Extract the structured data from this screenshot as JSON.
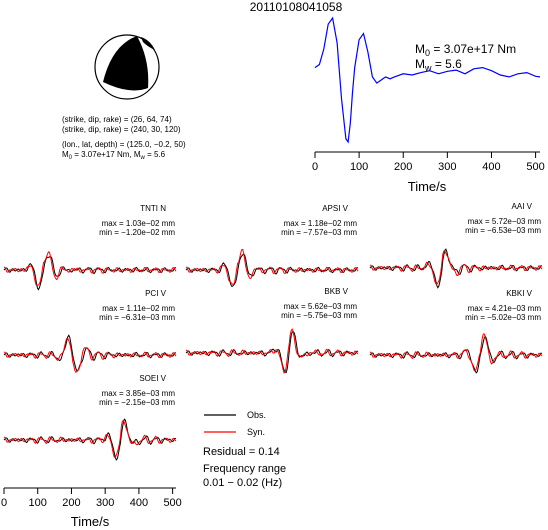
{
  "title": "20110108041058",
  "mechanism": {
    "strike_dip_rake_1": "(strike, dip, rake) = (26, 64, 74)",
    "strike_dip_rake_2": "(strike, dip, rake) = (240, 30, 120)",
    "lon_lat_depth": "(lon., lat, depth) = (125.0, −0.2, 50)",
    "moment_line_a": "M",
    "moment_sub_a": "0",
    "moment_line_b": " = 3.07e+17 Nm, M",
    "moment_sub_b": "w",
    "moment_line_c": " = 5.6"
  },
  "stf_panel": {
    "m0_label": "M",
    "m0_sub": "0",
    "m0_value": " = 3.07e+17 Nm",
    "mw_label": "M",
    "mw_sub": "w",
    "mw_value": " = 5.6",
    "xlabel": "Time/s",
    "xticks": [
      0,
      100,
      200,
      300,
      400,
      500
    ],
    "color": "#0000ff"
  },
  "legend": {
    "obs": "Obs.",
    "syn": "Syn.",
    "obs_color": "#000000",
    "syn_color": "#ff0000",
    "residual": "Residual = 0.14",
    "freq_title": "Frequency range",
    "freq_value": "0.01 − 0.02 (Hz)"
  },
  "bottom_axis": {
    "xlabel": "Time/s",
    "xticks": [
      0,
      100,
      200,
      300,
      400,
      500
    ]
  },
  "stations": [
    {
      "name": "TNTI N",
      "max": "max = 1.03e−02 mm",
      "min": "min = −1.20e−02 mm"
    },
    {
      "name": "APSI V",
      "max": "max = 1.18e−02 mm",
      "min": "min = −7.57e−03 mm"
    },
    {
      "name": "AAI V",
      "max": "max = 5.72e−03 mm",
      "min": "min = −6.53e−03 mm"
    },
    {
      "name": "PCI V",
      "max": "max = 1.11e−02 mm",
      "min": "min = −6.31e−03 mm"
    },
    {
      "name": "BKB V",
      "max": "max = 5.62e−03 mm",
      "min": "min = −5.75e−03 mm"
    },
    {
      "name": "KBKI V",
      "max": "max = 4.21e−03 mm",
      "min": "min = −5.02e−03 mm"
    },
    {
      "name": "SOEI V",
      "max": "max = 3.85e−03 mm",
      "min": "min = −2.15e−03 mm"
    }
  ],
  "chart_data": [
    {
      "type": "line",
      "description_role": "source time function",
      "xlabel": "Time/s",
      "xlim": [
        0,
        510
      ],
      "x": [
        0,
        10,
        20,
        30,
        40,
        50,
        60,
        70,
        75,
        80,
        85,
        90,
        100,
        110,
        120,
        130,
        140,
        150,
        160,
        170,
        180,
        200,
        220,
        240,
        260,
        280,
        300,
        320,
        340,
        360,
        380,
        400,
        420,
        440,
        460,
        480,
        500,
        510
      ],
      "y": [
        0.2,
        0.25,
        0.5,
        0.9,
        1.0,
        0.6,
        -0.3,
        -0.95,
        -1.0,
        -0.7,
        -0.2,
        0.2,
        0.65,
        0.75,
        0.45,
        0.05,
        -0.05,
        0.0,
        0.05,
        0.02,
        0.05,
        0.1,
        0.08,
        0.12,
        0.15,
        0.1,
        0.14,
        0.16,
        0.1,
        0.18,
        0.2,
        0.15,
        0.08,
        0.05,
        0.1,
        0.12,
        0.06,
        0.05
      ]
    }
  ]
}
